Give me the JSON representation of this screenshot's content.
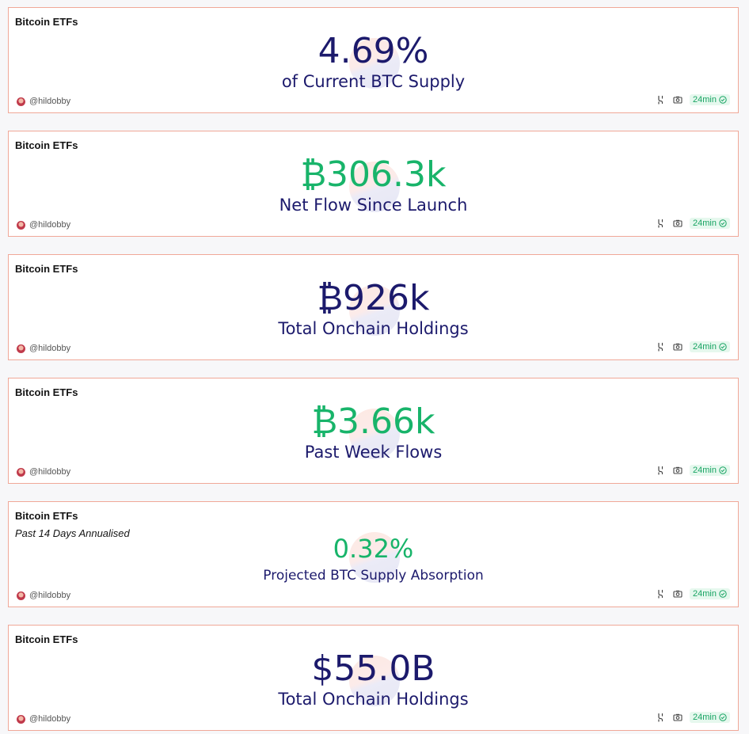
{
  "colors": {
    "navy": "#1c1a6c",
    "green": "#18b46a",
    "border": "#f0a898"
  },
  "cards": [
    {
      "title": "Bitcoin ETFs",
      "subtitle": "",
      "value": "4.69%",
      "label": "of Current BTC Supply",
      "value_color": "navy",
      "author": "@hildobby",
      "freshness": "24min"
    },
    {
      "title": "Bitcoin ETFs",
      "subtitle": "",
      "value": "₿306.3k",
      "label": "Net Flow Since Launch",
      "value_color": "green",
      "author": "@hildobby",
      "freshness": "24min"
    },
    {
      "title": "Bitcoin ETFs",
      "subtitle": "",
      "value": "₿926k",
      "label": "Total Onchain Holdings",
      "value_color": "navy",
      "author": "@hildobby",
      "freshness": "24min"
    },
    {
      "title": "Bitcoin ETFs",
      "subtitle": "",
      "value": "₿3.66k",
      "label": "Past Week Flows",
      "value_color": "green",
      "author": "@hildobby",
      "freshness": "24min"
    },
    {
      "title": "Bitcoin ETFs",
      "subtitle": "Past 14 Days Annualised",
      "value": "0.32%",
      "label": "Projected BTC Supply Absorption",
      "value_color": "green",
      "author": "@hildobby",
      "freshness": "24min"
    },
    {
      "title": "Bitcoin ETFs",
      "subtitle": "",
      "value": "$55.0B",
      "label": "Total Onchain Holdings",
      "value_color": "navy",
      "author": "@hildobby",
      "freshness": "24min"
    }
  ],
  "icons": {
    "fork": "fork-icon",
    "camera": "camera-icon",
    "check": "check-circle-icon"
  }
}
